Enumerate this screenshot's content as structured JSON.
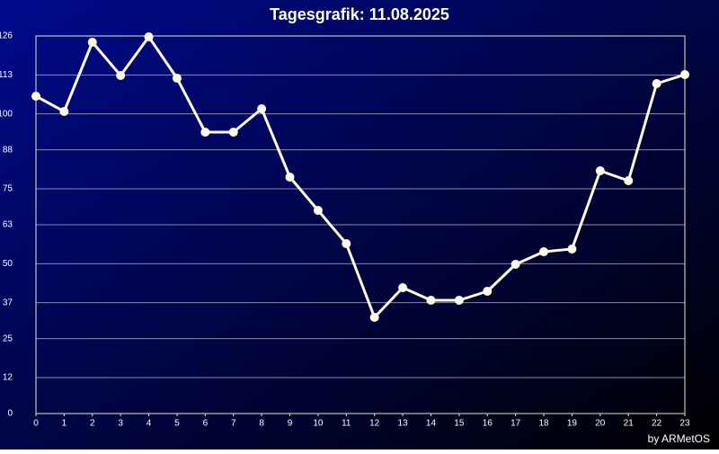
{
  "chart_data": {
    "type": "line",
    "title": "Tagesgrafik: 11.08.2025",
    "footer": "by ARMetOS",
    "x": [
      0,
      1,
      2,
      3,
      4,
      5,
      6,
      7,
      8,
      9,
      10,
      11,
      12,
      13,
      14,
      15,
      16,
      17,
      18,
      19,
      20,
      21,
      22,
      23
    ],
    "xlim": [
      0,
      23
    ],
    "xticks": [
      0,
      1,
      2,
      3,
      4,
      5,
      6,
      7,
      8,
      9,
      10,
      11,
      12,
      13,
      14,
      15,
      16,
      17,
      18,
      19,
      20,
      21,
      22,
      23
    ],
    "ylim": [
      0,
      126
    ],
    "yticks": [
      0,
      12,
      25,
      37,
      50,
      63,
      75,
      88,
      100,
      113,
      126
    ],
    "grid": true,
    "series": [
      {
        "color": "#fffbe6",
        "values": [
          105.9,
          100.8,
          123.9,
          112.8,
          125.7,
          111.9,
          93.9,
          93.9,
          101.7,
          78.9,
          67.8,
          56.7,
          32.1,
          42,
          37.8,
          37.8,
          40.8,
          49.8,
          54,
          54.9,
          81,
          77.7,
          110.1,
          113.1
        ]
      }
    ]
  }
}
